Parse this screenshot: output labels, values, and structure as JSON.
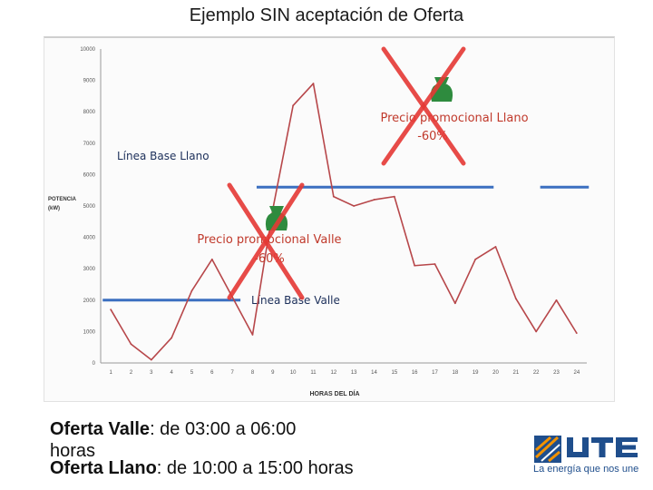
{
  "title": "Ejemplo SIN aceptación de Oferta",
  "chart_data": {
    "type": "line",
    "xlabel": "HORAS DEL DÍA",
    "ylabel": [
      "POTENCIA",
      "(kW)"
    ],
    "ylim": [
      0,
      10000
    ],
    "yticks": [
      "0",
      "1000",
      "2000",
      "3000",
      "4000",
      "5000",
      "6000",
      "7000",
      "8000",
      "9000",
      "10000"
    ],
    "x": [
      1,
      2,
      3,
      4,
      5,
      6,
      7,
      8,
      9,
      10,
      11,
      12,
      13,
      14,
      15,
      16,
      17,
      18,
      19,
      20,
      21,
      22,
      23,
      24
    ],
    "series": [
      {
        "values": [
          1700,
          600,
          100,
          800,
          2300,
          3300,
          2100,
          900,
          4900,
          8200,
          8900,
          5300,
          5000,
          5200,
          5300,
          3100,
          3150,
          1900,
          3300,
          3700,
          2050,
          1000,
          2000,
          950
        ],
        "color": "#b7474a"
      }
    ],
    "reference_lines": [
      {
        "label": "Línea Base Llano",
        "value": 5600,
        "segments": [
          [
            8.2,
            19.9
          ],
          [
            22.2,
            24.6
          ]
        ],
        "color": "#3b6fc0"
      },
      {
        "label": "Línea Base Valle",
        "value": 2000,
        "segments": [
          [
            0.6,
            7.4
          ]
        ],
        "color": "#3b6fc0"
      }
    ],
    "annotations": [
      {
        "text": [
          "Precio promocional Llano",
          "-60%"
        ],
        "color": "#c0392b",
        "crossed": true
      },
      {
        "text": [
          "Precio promocional Valle",
          "-60%"
        ],
        "color": "#c0392b",
        "crossed": true
      }
    ],
    "grid": false
  },
  "offers": {
    "valle_label": "Oferta Valle",
    "valle_text": ": de 03:00 a 06:00",
    "valle_wrap": "horas",
    "llano_label": "Oferta Llano",
    "llano_text": ": de 10:00 a 15:00 horas"
  },
  "logo": {
    "brand": "UTE",
    "tagline": "La energía que nos une",
    "colors": {
      "blue": "#1f4e8c",
      "orange": "#f29200"
    }
  }
}
